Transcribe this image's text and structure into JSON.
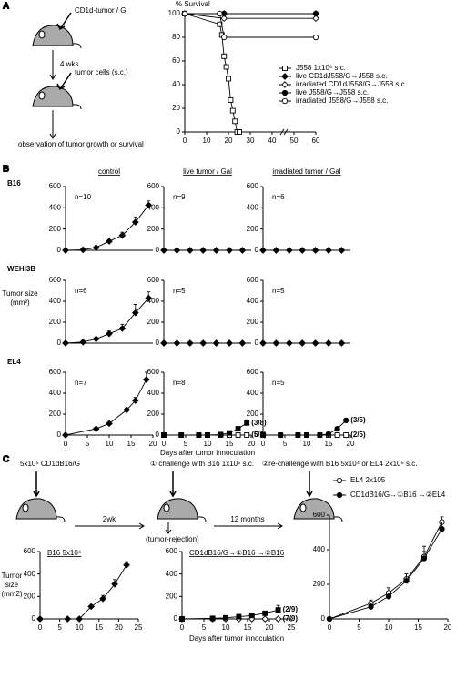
{
  "figure": {
    "panel_labels": [
      "A",
      "B",
      "C"
    ],
    "panel_a": {
      "step1": "CD1d-tumor / G",
      "interval": "4 wks",
      "step2": "tumor cells (s.c.)",
      "outcome": "observation of tumor growth or survival"
    },
    "panel_b": {
      "columns": [
        "control",
        "live tumor / Gal",
        "irradiated tumor / Gal"
      ],
      "rows": [
        "B16",
        "WEHI3B",
        "EL4"
      ],
      "y_label": "Tumor size (mm²)",
      "x_label": "Days after tumor innoculation"
    },
    "panel_c": {
      "step1": "5x10⁵ CD1dB16/G",
      "interval1": "2wk",
      "step2": "① challenge with B16 1x10⁵ s.c.",
      "interval2": "12 months",
      "step3": "②re-challenge with B16 5x10⁴ or EL4 2x10⁵ s.c.",
      "rejection": "(tumor-rejection)"
    }
  },
  "chart_data": [
    {
      "type": "line",
      "y_label": "% Survival",
      "xlim": [
        0,
        60
      ],
      "xticks": [
        0,
        10,
        20,
        30,
        40,
        50,
        60
      ],
      "ylim": [
        0,
        100
      ],
      "yticks": [
        0,
        20,
        40,
        60,
        80,
        100
      ],
      "legend": "lower right",
      "series": [
        {
          "name": "J558 1x10⁶ s.c.",
          "marker": "square",
          "filled": false,
          "color": "#000000",
          "x": [
            0,
            16,
            17,
            18,
            19,
            20,
            21,
            22,
            23,
            24,
            25
          ],
          "values": [
            100,
            91,
            82,
            64,
            55,
            45,
            27,
            18,
            9,
            0,
            0
          ]
        },
        {
          "name": "live CD1dJ558/G→J558 s.c.",
          "marker": "diamond",
          "filled": true,
          "color": "#000000",
          "x": [
            0,
            18,
            60
          ],
          "values": [
            100,
            100,
            100
          ]
        },
        {
          "name": "irradiated CD1dJ558/G→J558 s.c.",
          "marker": "diamond",
          "filled": false,
          "color": "#000000",
          "x": [
            0,
            18,
            60
          ],
          "values": [
            100,
            96,
            96
          ]
        },
        {
          "name": "live J558/G→J558 s.c.",
          "marker": "circle",
          "filled": true,
          "color": "#000000",
          "x": [
            0,
            18,
            60
          ],
          "values": [
            100,
            100,
            100
          ]
        },
        {
          "name": "irradiated J558/G→J558 s.c.",
          "marker": "circle",
          "filled": false,
          "color": "#000000",
          "x": [
            0,
            16,
            18,
            60
          ],
          "values": [
            100,
            100,
            80,
            80
          ]
        }
      ]
    },
    {
      "type": "line",
      "annotation": "n=10",
      "xlim": [
        0,
        20
      ],
      "ylim": [
        0,
        600
      ],
      "yticks": [
        0,
        200,
        400,
        600
      ],
      "series": [
        {
          "marker": "diamond",
          "filled": true,
          "color": "#000000",
          "x": [
            0,
            4,
            7,
            10,
            13,
            16,
            19
          ],
          "values": [
            0,
            5,
            25,
            85,
            140,
            265,
            425
          ],
          "errors": [
            0,
            5,
            10,
            30,
            30,
            50,
            40
          ]
        }
      ]
    },
    {
      "type": "line",
      "annotation": "n=9",
      "xlim": [
        0,
        20
      ],
      "ylim": [
        0,
        600
      ],
      "yticks": [
        0,
        200,
        400,
        600
      ],
      "series": [
        {
          "marker": "diamond",
          "filled": true,
          "color": "#000000",
          "x": [
            0,
            3,
            6,
            9,
            12,
            15,
            18
          ],
          "values": [
            0,
            0,
            0,
            0,
            0,
            0,
            0
          ]
        }
      ]
    },
    {
      "type": "line",
      "annotation": "n=6",
      "xlim": [
        0,
        20
      ],
      "ylim": [
        0,
        600
      ],
      "yticks": [
        0,
        200,
        400,
        600
      ],
      "series": [
        {
          "marker": "diamond",
          "filled": true,
          "color": "#000000",
          "x": [
            0,
            3,
            6,
            9,
            12,
            15,
            18
          ],
          "values": [
            0,
            0,
            0,
            0,
            0,
            0,
            0
          ]
        }
      ]
    },
    {
      "type": "line",
      "annotation": "n=6",
      "xlim": [
        0,
        20
      ],
      "ylim": [
        0,
        600
      ],
      "yticks": [
        0,
        200,
        400,
        600
      ],
      "series": [
        {
          "marker": "diamond",
          "filled": true,
          "color": "#000000",
          "x": [
            0,
            4,
            7,
            10,
            13,
            16,
            19
          ],
          "values": [
            0,
            10,
            40,
            90,
            140,
            290,
            430
          ],
          "errors": [
            0,
            5,
            10,
            25,
            40,
            80,
            60
          ]
        }
      ]
    },
    {
      "type": "line",
      "annotation": "n=5",
      "xlim": [
        0,
        20
      ],
      "ylim": [
        0,
        600
      ],
      "yticks": [
        0,
        200,
        400,
        600
      ],
      "series": [
        {
          "marker": "diamond",
          "filled": true,
          "color": "#000000",
          "x": [
            0,
            3,
            6,
            9,
            12,
            15,
            18
          ],
          "values": [
            0,
            0,
            0,
            0,
            0,
            0,
            0
          ]
        }
      ]
    },
    {
      "type": "line",
      "annotation": "n=5",
      "xlim": [
        0,
        20
      ],
      "ylim": [
        0,
        600
      ],
      "yticks": [
        0,
        200,
        400,
        600
      ],
      "series": [
        {
          "marker": "diamond",
          "filled": true,
          "color": "#000000",
          "x": [
            0,
            3,
            6,
            9,
            12,
            15,
            18
          ],
          "values": [
            0,
            0,
            0,
            0,
            0,
            0,
            0
          ]
        }
      ]
    },
    {
      "type": "line",
      "annotation": "n=7",
      "xlim": [
        0,
        20
      ],
      "xticks": [
        0,
        5,
        10,
        15,
        20
      ],
      "ylim": [
        0,
        600
      ],
      "yticks": [
        0,
        200,
        400,
        600
      ],
      "series": [
        {
          "marker": "diamond",
          "filled": true,
          "color": "#000000",
          "x": [
            0,
            7,
            10,
            14,
            16,
            18.5
          ],
          "values": [
            0,
            60,
            110,
            240,
            330,
            530
          ],
          "errors": [
            0,
            10,
            15,
            20,
            30,
            70
          ]
        }
      ]
    },
    {
      "type": "line",
      "annotation": "n=8",
      "xlim": [
        0,
        20
      ],
      "xticks": [
        0,
        5,
        10,
        15,
        20
      ],
      "ylim": [
        0,
        600
      ],
      "yticks": [
        0,
        200,
        400,
        600
      ],
      "series": [
        {
          "name": "(5/8)",
          "marker": "square",
          "filled": false,
          "color": "#000000",
          "x": [
            0,
            8,
            10,
            13,
            15,
            17,
            19
          ],
          "values": [
            0,
            0,
            0,
            0,
            0,
            0,
            0
          ]
        },
        {
          "name": "(3/8)",
          "marker": "square",
          "filled": true,
          "color": "#000000",
          "x": [
            0,
            4,
            8,
            10,
            13,
            15,
            17,
            19
          ],
          "values": [
            0,
            0,
            0,
            0,
            5,
            20,
            60,
            115
          ],
          "errors": [
            0,
            0,
            0,
            0,
            0,
            10,
            20,
            30
          ]
        }
      ]
    },
    {
      "type": "line",
      "annotation": "n=5",
      "xlim": [
        0,
        20
      ],
      "xticks": [
        0,
        5,
        10,
        15,
        20
      ],
      "ylim": [
        0,
        600
      ],
      "yticks": [
        0,
        200,
        400,
        600
      ],
      "series": [
        {
          "name": "(2/5)",
          "marker": "square",
          "filled": false,
          "color": "#000000",
          "x": [
            0,
            4,
            8,
            10,
            13,
            15,
            17,
            19
          ],
          "values": [
            0,
            0,
            0,
            0,
            0,
            0,
            0,
            0
          ]
        },
        {
          "name": "(3/5)",
          "marker": "circle",
          "filled": true,
          "color": "#000000",
          "x": [
            0,
            4,
            8,
            10,
            13,
            15,
            17,
            19
          ],
          "values": [
            0,
            0,
            0,
            0,
            0,
            10,
            60,
            140
          ]
        }
      ]
    },
    {
      "type": "line",
      "title": "B16 5x10⁴",
      "y_label": "Tumor size (mm2)",
      "xlim": [
        0,
        25
      ],
      "xticks": [
        0,
        5,
        10,
        15,
        20,
        25
      ],
      "ylim": [
        0,
        600
      ],
      "yticks": [
        0,
        200,
        400,
        600
      ],
      "series": [
        {
          "marker": "diamond",
          "filled": true,
          "color": "#000000",
          "x": [
            0,
            7,
            10,
            13,
            16,
            19,
            22
          ],
          "values": [
            0,
            0,
            0,
            110,
            180,
            310,
            480
          ],
          "errors": [
            0,
            0,
            0,
            10,
            30,
            40,
            30
          ]
        }
      ]
    },
    {
      "type": "line",
      "title": "CD1dB16/G→①B16 →②B16",
      "x_label": "Days after tumor innoculation",
      "xlim": [
        0,
        25
      ],
      "xticks": [
        0,
        5,
        10,
        15,
        20,
        25
      ],
      "ylim": [
        0,
        600
      ],
      "yticks": [
        0,
        200,
        400,
        600
      ],
      "series": [
        {
          "name": "(7/9)",
          "marker": "diamond",
          "filled": false,
          "color": "#000000",
          "x": [
            0,
            7,
            10,
            13,
            16,
            19,
            22
          ],
          "values": [
            0,
            0,
            0,
            0,
            0,
            0,
            0
          ]
        },
        {
          "name": "(2/9)",
          "marker": "square",
          "filled": true,
          "color": "#000000",
          "x": [
            0,
            7,
            10,
            13,
            16,
            19,
            22
          ],
          "values": [
            0,
            5,
            10,
            20,
            30,
            50,
            80
          ],
          "errors": [
            0,
            5,
            5,
            10,
            10,
            20,
            40
          ]
        }
      ]
    },
    {
      "type": "line",
      "xlim": [
        0,
        20
      ],
      "xticks": [
        0,
        5,
        10,
        15,
        20
      ],
      "ylim": [
        0,
        600
      ],
      "yticks": [
        0,
        200,
        400,
        600
      ],
      "legend": "upper left",
      "series": [
        {
          "name": "EL4 2x105",
          "marker": "circle",
          "filled": false,
          "color": "#000000",
          "x": [
            0,
            7,
            10,
            13,
            16,
            19
          ],
          "values": [
            0,
            90,
            150,
            230,
            360,
            560
          ],
          "errors": [
            0,
            20,
            30,
            30,
            60,
            30
          ]
        },
        {
          "name": "CD1dB16/G→①B16 →②EL4",
          "marker": "circle",
          "filled": true,
          "color": "#000000",
          "x": [
            0,
            7,
            10,
            13,
            16,
            19
          ],
          "values": [
            0,
            70,
            130,
            220,
            350,
            520
          ],
          "errors": [
            0,
            20,
            20,
            40,
            40,
            40
          ]
        }
      ]
    }
  ]
}
